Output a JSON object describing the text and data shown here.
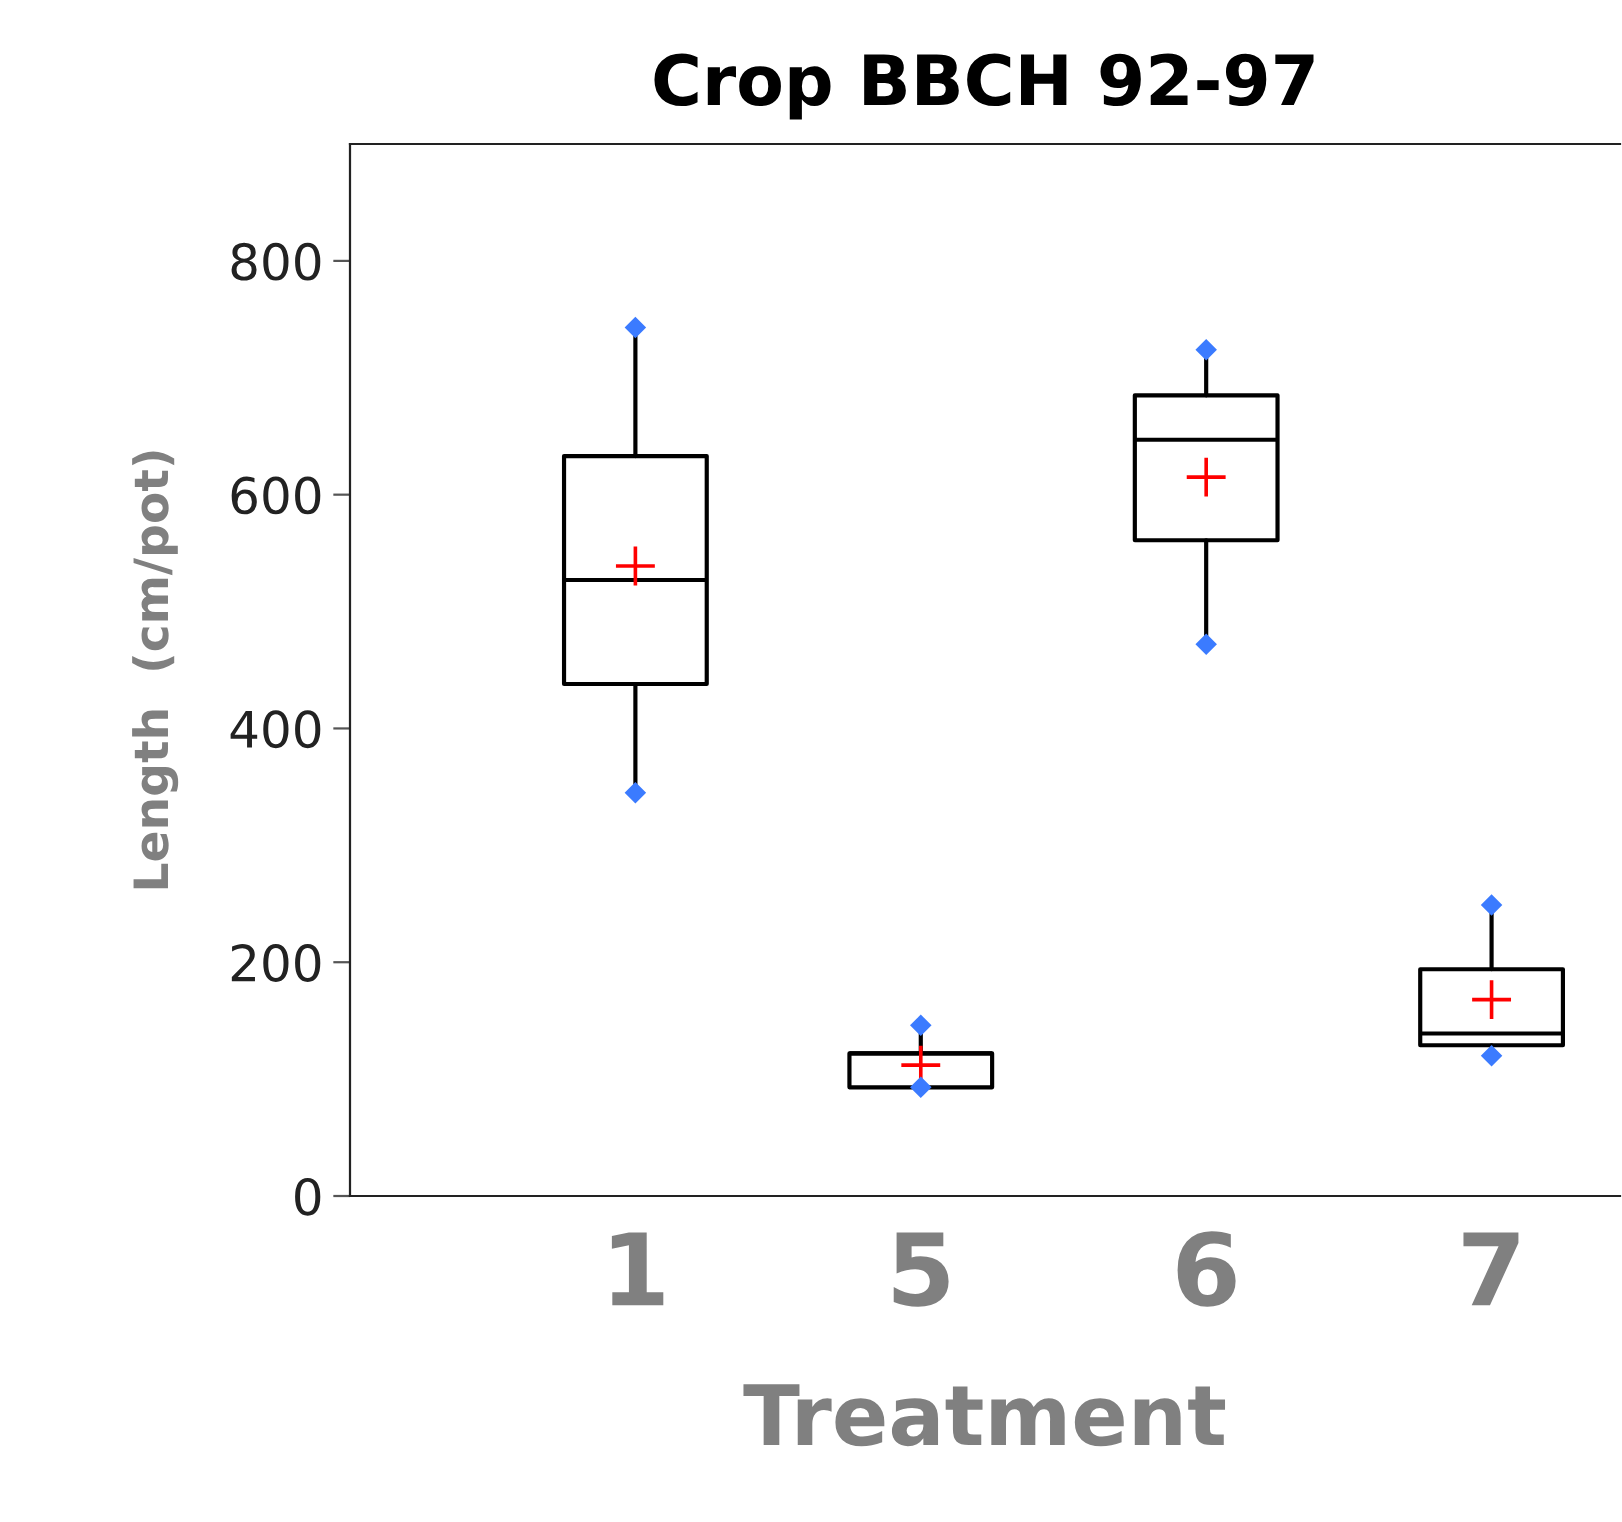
{
  "chart_data": {
    "type": "box",
    "title": "Crop BBCH 92-97",
    "xlabel": "Treatment",
    "ylabel": "Length  (cm/pot)",
    "categories": [
      "1",
      "5",
      "6",
      "7"
    ],
    "boxes": [
      {
        "low": 345,
        "q1": 438,
        "median": 527,
        "q3": 633,
        "high": 743,
        "mean": 539
      },
      {
        "low": 93,
        "q1": 93,
        "median": 122,
        "q3": 122,
        "high": 146,
        "mean": 112
      },
      {
        "low": 472,
        "q1": 561,
        "median": 647,
        "q3": 685,
        "high": 724,
        "mean": 615
      },
      {
        "low": 120,
        "q1": 129,
        "median": 139,
        "q3": 194,
        "high": 249,
        "mean": 168
      }
    ],
    "series": [
      {
        "type": "scatter",
        "color": "#3b7bff",
        "marker": "diamond",
        "x": [
          "1",
          "1",
          "5",
          "5",
          "6",
          "6",
          "7",
          "7"
        ],
        "values": [
          345,
          743,
          93,
          146,
          472,
          724,
          120,
          249
        ]
      }
    ],
    "ylim": [
      0,
      900
    ],
    "yticks": [
      0,
      200,
      400,
      600,
      800
    ],
    "grid": false
  }
}
